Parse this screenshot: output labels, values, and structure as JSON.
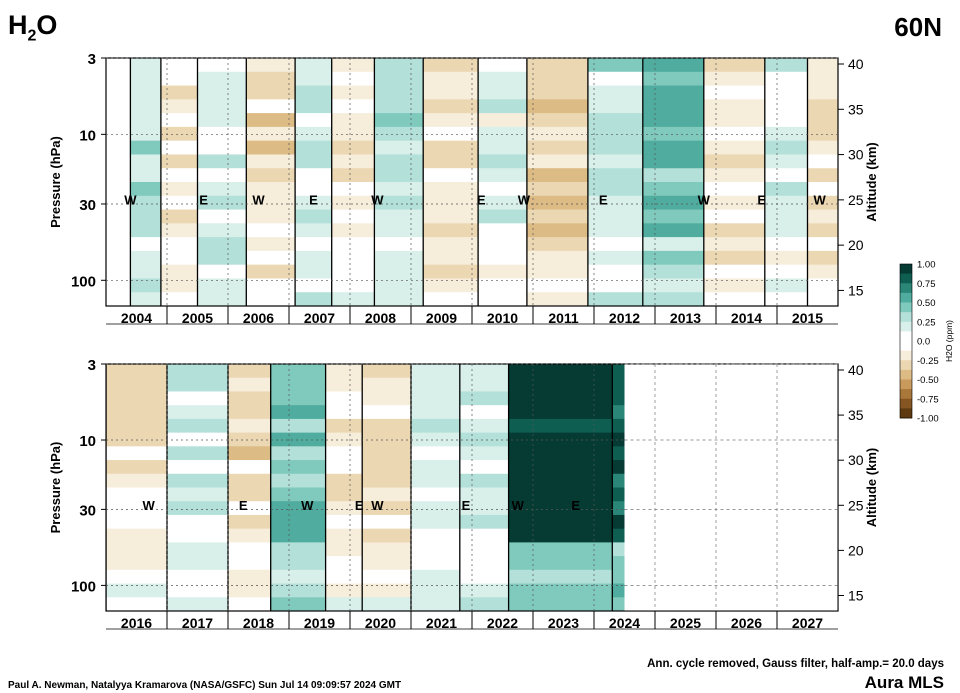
{
  "header": {
    "title_main": "H",
    "title_sub": "2",
    "title_end": "O",
    "latitude": "60N"
  },
  "footer": {
    "settings": "Ann. cycle removed, Gauss filter, half-amp.= 20.0 days",
    "instrument": "Aura MLS",
    "credit": "Paul A. Newman, Natalyya Kramarova (NASA/GSFC) Sun Jul 14 09:09:57 2024 GMT"
  },
  "chart_data": [
    {
      "type": "heatmap",
      "panel": "top",
      "ylabel": "Pressure (hPa)",
      "ylabel_right": "Altitude (km)",
      "pressure_ticks": [
        "3",
        "10",
        "30",
        "100"
      ],
      "altitude_ticks": [
        "40",
        "35",
        "30",
        "25",
        "20",
        "15"
      ],
      "x_years": [
        "2004",
        "2005",
        "2006",
        "2007",
        "2008",
        "2009",
        "2010",
        "2011",
        "2012",
        "2013",
        "2014",
        "2015"
      ],
      "qbo_labels": [
        {
          "t": 2004.0,
          "text": "W"
        },
        {
          "t": 2005.2,
          "text": "E"
        },
        {
          "t": 2006.1,
          "text": "W"
        },
        {
          "t": 2007.0,
          "text": "E"
        },
        {
          "t": 2008.05,
          "text": "W"
        },
        {
          "t": 2009.75,
          "text": "E"
        },
        {
          "t": 2010.45,
          "text": "W"
        },
        {
          "t": 2011.75,
          "text": "E"
        },
        {
          "t": 2013.4,
          "text": "W"
        },
        {
          "t": 2014.35,
          "text": "E"
        },
        {
          "t": 2015.3,
          "text": "W"
        }
      ],
      "anomaly_segments": [
        {
          "t0": 2004.0,
          "t1": 2004.5,
          "v": 0.25
        },
        {
          "t0": 2004.5,
          "t1": 2005.1,
          "v": -0.1
        },
        {
          "t0": 2005.1,
          "t1": 2005.9,
          "v": 0.15
        },
        {
          "t0": 2005.9,
          "t1": 2006.7,
          "v": -0.2
        },
        {
          "t0": 2006.7,
          "t1": 2007.3,
          "v": 0.2
        },
        {
          "t0": 2007.3,
          "t1": 2008.0,
          "v": -0.1
        },
        {
          "t0": 2008.0,
          "t1": 2008.8,
          "v": 0.2
        },
        {
          "t0": 2008.8,
          "t1": 2009.7,
          "v": -0.15
        },
        {
          "t0": 2009.7,
          "t1": 2010.5,
          "v": 0.1
        },
        {
          "t0": 2010.5,
          "t1": 2011.5,
          "v": -0.25
        },
        {
          "t0": 2011.5,
          "t1": 2012.4,
          "v": 0.2
        },
        {
          "t0": 2012.4,
          "t1": 2013.4,
          "v": 0.45
        },
        {
          "t0": 2013.4,
          "t1": 2014.4,
          "v": -0.15
        },
        {
          "t0": 2014.4,
          "t1": 2015.1,
          "v": 0.1
        },
        {
          "t0": 2015.1,
          "t1": 2016.0,
          "v": -0.2
        }
      ],
      "xlim": [
        2003.6,
        2015.6
      ]
    },
    {
      "type": "heatmap",
      "panel": "bottom",
      "ylabel": "Pressure (hPa)",
      "ylabel_right": "Altitude (km)",
      "pressure_ticks": [
        "3",
        "10",
        "30",
        "100"
      ],
      "altitude_ticks": [
        "40",
        "35",
        "30",
        "25",
        "20",
        "15"
      ],
      "x_years": [
        "2016",
        "2017",
        "2018",
        "2019",
        "2020",
        "2021",
        "2022",
        "2023",
        "2024",
        "2025",
        "2026",
        "2027"
      ],
      "qbo_labels": [
        {
          "t": 2016.3,
          "text": "W"
        },
        {
          "t": 2017.85,
          "text": "E"
        },
        {
          "t": 2018.9,
          "text": "W"
        },
        {
          "t": 2019.75,
          "text": "E"
        },
        {
          "t": 2020.05,
          "text": "W"
        },
        {
          "t": 2021.5,
          "text": "E"
        },
        {
          "t": 2022.35,
          "text": "W"
        },
        {
          "t": 2023.3,
          "text": "E"
        }
      ],
      "anomaly_segments": [
        {
          "t0": 2015.6,
          "t1": 2016.6,
          "v": -0.15
        },
        {
          "t0": 2016.6,
          "t1": 2017.6,
          "v": 0.15
        },
        {
          "t0": 2017.6,
          "t1": 2018.3,
          "v": -0.2
        },
        {
          "t0": 2018.3,
          "t1": 2019.2,
          "v": 0.45
        },
        {
          "t0": 2019.2,
          "t1": 2019.8,
          "v": -0.1
        },
        {
          "t0": 2019.8,
          "t1": 2020.6,
          "v": -0.2
        },
        {
          "t0": 2020.6,
          "t1": 2021.4,
          "v": 0.1
        },
        {
          "t0": 2021.4,
          "t1": 2022.2,
          "v": 0.2
        },
        {
          "t0": 2022.2,
          "t1": 2023.9,
          "v": 1.0
        },
        {
          "t0": 2023.9,
          "t1": 2024.1,
          "v": 0.9
        }
      ],
      "data_end": 2024.1,
      "xlim": [
        2015.6,
        2027.6
      ]
    }
  ],
  "colorbar": {
    "label": "H2O (ppm)",
    "ticks": [
      "1.00",
      "0.75",
      "0.50",
      "0.25",
      "0.0",
      "-0.25",
      "-0.50",
      "-0.75",
      "-1.00"
    ],
    "colors_pos": [
      "#ffffff",
      "#d8efea",
      "#b3e0d8",
      "#7fcabd",
      "#4fac9e",
      "#2a8677",
      "#0e5e52",
      "#053b33"
    ],
    "colors_neg": [
      "#ffffff",
      "#f6eddb",
      "#ecd7b3",
      "#ddbb85",
      "#c99a5c",
      "#a9773a",
      "#855522",
      "#5f3a10"
    ]
  }
}
